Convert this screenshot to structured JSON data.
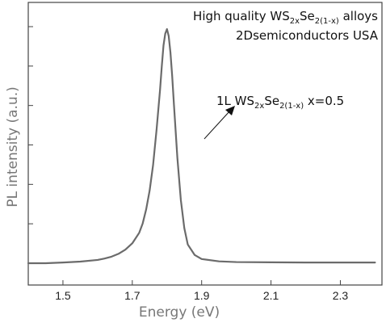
{
  "chart_data": {
    "type": "line",
    "xlabel": "Energy (eV)",
    "ylabel": "PL intensity (a.u.)",
    "xlim": [
      1.4,
      2.42
    ],
    "x_ticks": [
      1.5,
      1.7,
      1.9,
      2.1,
      2.3
    ],
    "x_tick_labels": [
      "1.5",
      "1.7",
      "1.9",
      "2.1",
      "2.3"
    ],
    "ylim": [
      -0.05,
      1.05
    ],
    "y_tick_labels_shown": false,
    "grid": false,
    "legend": "none",
    "series": [
      {
        "color": "#6b6b6b",
        "x": [
          1.4,
          1.45,
          1.5,
          1.55,
          1.6,
          1.62,
          1.64,
          1.66,
          1.68,
          1.7,
          1.72,
          1.73,
          1.74,
          1.75,
          1.76,
          1.77,
          1.78,
          1.785,
          1.79,
          1.795,
          1.8,
          1.805,
          1.81,
          1.815,
          1.82,
          1.83,
          1.84,
          1.85,
          1.86,
          1.88,
          1.9,
          1.95,
          2.0,
          2.1,
          2.2,
          2.3,
          2.4
        ],
        "y": [
          0.0,
          0.0,
          0.003,
          0.007,
          0.014,
          0.02,
          0.028,
          0.04,
          0.058,
          0.085,
          0.13,
          0.17,
          0.23,
          0.31,
          0.42,
          0.57,
          0.74,
          0.84,
          0.93,
          0.98,
          1.0,
          0.97,
          0.9,
          0.8,
          0.68,
          0.45,
          0.27,
          0.15,
          0.08,
          0.035,
          0.018,
          0.008,
          0.005,
          0.004,
          0.003,
          0.003,
          0.003
        ]
      }
    ],
    "annotations": {
      "top_line1_prefix": "High quality WS",
      "top_line1_sub1": "2x",
      "top_line1_mid": "Se",
      "top_line1_sub2": "2(1-x)",
      "top_line1_suffix": " alloys",
      "top_line2": "2Dsemiconductors USA",
      "sample_prefix": "1L WS",
      "sample_sub1": "2x",
      "sample_mid": "Se",
      "sample_sub2": "2(1-x)",
      "sample_suffix": " x=0.5"
    }
  }
}
